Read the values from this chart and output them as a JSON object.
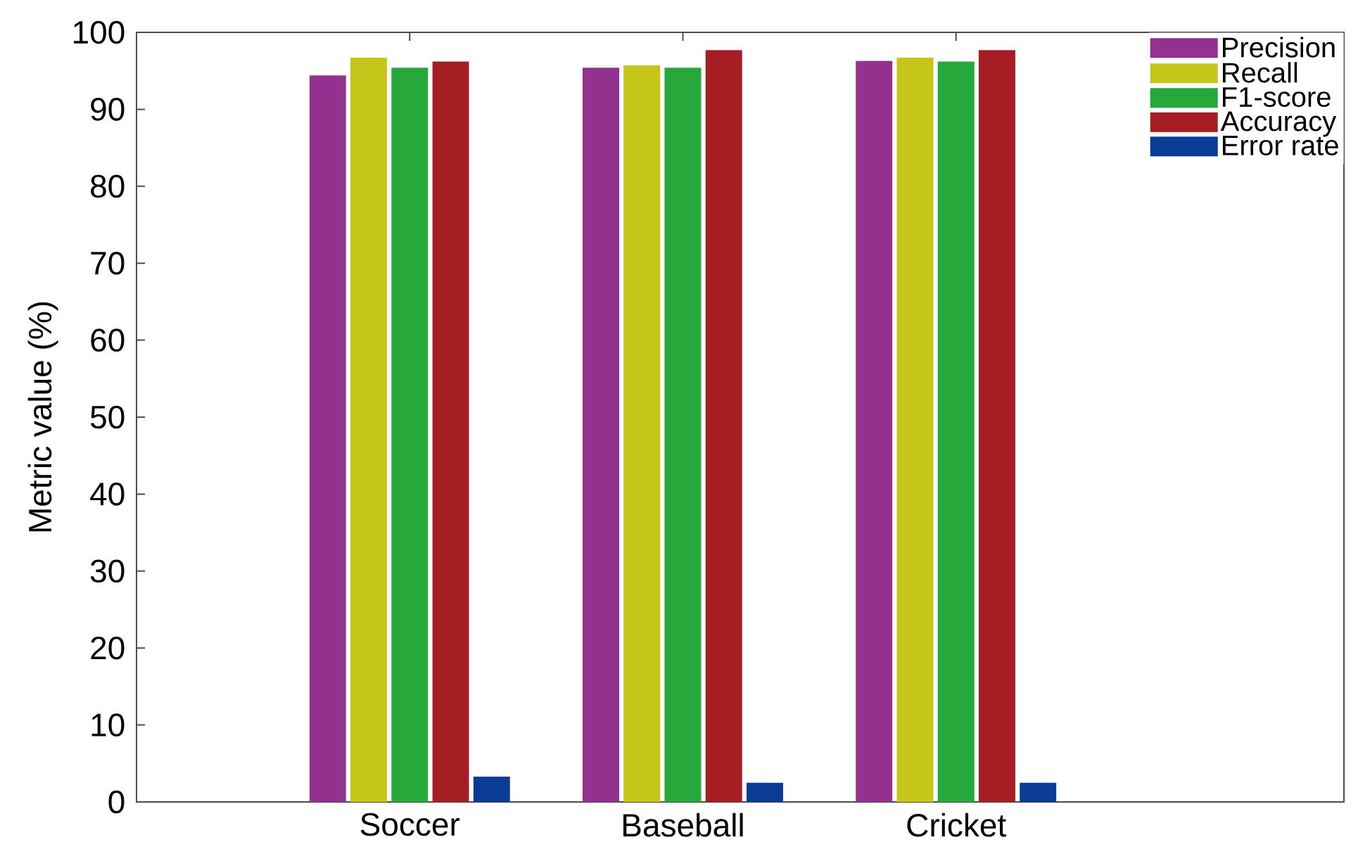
{
  "chart_data": {
    "type": "bar",
    "ylabel": "Metric value (%)",
    "categories": [
      "Soccer",
      "Baseball",
      "Cricket"
    ],
    "series": [
      {
        "name": "Precision",
        "color": "#93318e",
        "values": [
          94.4,
          95.4,
          96.3
        ]
      },
      {
        "name": "Recall",
        "color": "#c5c51a",
        "values": [
          96.7,
          95.7,
          96.7
        ]
      },
      {
        "name": "F1-score",
        "color": "#27a83a",
        "values": [
          95.4,
          95.4,
          96.2
        ]
      },
      {
        "name": "Accuracy",
        "color": "#a61e24",
        "values": [
          96.2,
          97.7,
          97.7
        ]
      },
      {
        "name": "Error rate",
        "color": "#0a3c96",
        "values": [
          3.3,
          2.5,
          2.5
        ]
      }
    ],
    "ylim": [
      0,
      100
    ],
    "yticks": [
      0,
      10,
      20,
      30,
      40,
      50,
      60,
      70,
      80,
      90,
      100
    ],
    "legend": "top right",
    "grid": false
  }
}
